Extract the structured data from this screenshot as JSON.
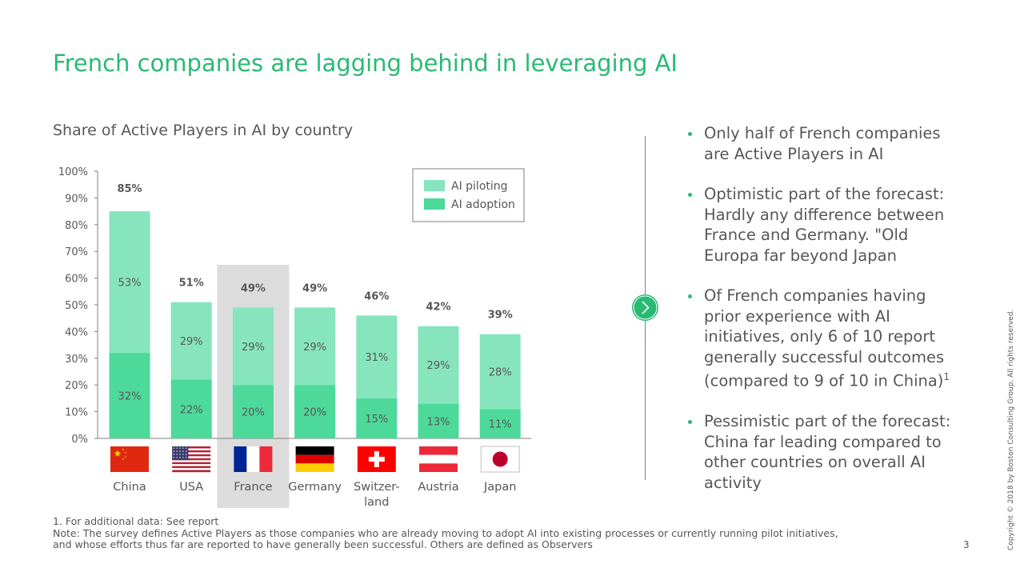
{
  "slide": {
    "title": "French companies are lagging behind in leveraging AI",
    "page_number": "3",
    "copyright": "Copyright © 2018 by Boston Consulting Group. All rights reserved."
  },
  "bullets": [
    {
      "text": "Only half of French companies are Active Players in AI",
      "sup": ""
    },
    {
      "text": "Optimistic part of the forecast: Hardly any difference between France and Germany. \"Old Europa far beyond Japan",
      "sup": ""
    },
    {
      "text": "Of French companies having prior experience with AI initiatives, only 6 of 10 report generally successful outcomes (compared to 9 of 10 in China)",
      "sup": "1"
    },
    {
      "text": "Pessimistic part of the forecast: China far leading compared to other countries on overall AI activity",
      "sup": ""
    }
  ],
  "footnotes": [
    "1. For additional data: See report",
    "Note: The survey defines Active Players as those companies who are already moving to adopt AI into existing processes or currently running pilot initiatives,",
    "and whose efforts thus far are reported to have generally been successful. Others are defined as Observers"
  ],
  "colors": {
    "accent": "#29ba74",
    "piloting": "#86e5bd",
    "adoption": "#4cd99a",
    "highlight": "#dcdcdc",
    "text": "#575757"
  },
  "chart_data": {
    "type": "bar",
    "stacked": true,
    "title": "Share of Active Players in AI by country",
    "categories": [
      "China",
      "USA",
      "France",
      "Germany",
      "Switzer-\nland",
      "Austria",
      "Japan"
    ],
    "flag_icons": [
      "china-flag-icon",
      "usa-flag-icon",
      "france-flag-icon",
      "germany-flag-icon",
      "switzerland-flag-icon",
      "austria-flag-icon",
      "japan-flag-icon"
    ],
    "series": [
      {
        "name": "AI adoption",
        "values": [
          32,
          22,
          20,
          20,
          15,
          13,
          11
        ],
        "labels": [
          "32%",
          "22%",
          "20%",
          "20%",
          "15%",
          "13%",
          "11%"
        ]
      },
      {
        "name": "AI piloting",
        "values": [
          53,
          29,
          29,
          29,
          31,
          29,
          28
        ],
        "labels": [
          "53%",
          "29%",
          "29%",
          "29%",
          "31%",
          "29%",
          "28%"
        ]
      }
    ],
    "totals": [
      "85%",
      "51%",
      "49%",
      "49%",
      "46%",
      "42%",
      "39%"
    ],
    "total_values": [
      85,
      51,
      49,
      49,
      46,
      42,
      39
    ],
    "y_ticks": [
      "0%",
      "10%",
      "20%",
      "30%",
      "40%",
      "50%",
      "60%",
      "70%",
      "80%",
      "90%",
      "100%"
    ],
    "ylim": [
      0,
      100
    ],
    "highlighted_category": "France",
    "legend": [
      "AI piloting",
      "AI adoption"
    ],
    "legend_position": "top-right",
    "grid": false
  }
}
